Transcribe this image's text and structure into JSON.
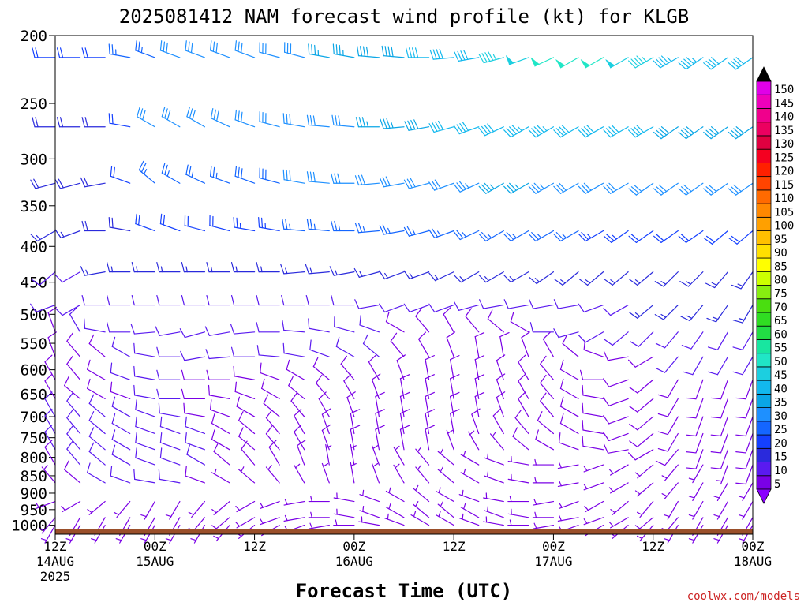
{
  "chart_data": {
    "type": "wind_barbs",
    "title": "2025081412 NAM forecast wind profile (kt) for KLGB",
    "xlabel": "Forecast Time (UTC)",
    "watermark": "coolwx.com/models",
    "y_axis": {
      "quantity": "pressure (hPa)",
      "scale": "log",
      "reversed": true,
      "range": [
        1030,
        200
      ],
      "ticks": [
        200,
        250,
        300,
        350,
        400,
        450,
        500,
        550,
        600,
        650,
        700,
        750,
        800,
        850,
        900,
        950,
        1000
      ]
    },
    "x_axis": {
      "range_hours": [
        0,
        84
      ],
      "ticks": [
        {
          "hour": 0,
          "lines": [
            "12Z",
            "14AUG",
            "2025"
          ]
        },
        {
          "hour": 12,
          "lines": [
            "00Z",
            "15AUG"
          ]
        },
        {
          "hour": 24,
          "lines": [
            "12Z",
            ""
          ]
        },
        {
          "hour": 36,
          "lines": [
            "00Z",
            "16AUG"
          ]
        },
        {
          "hour": 48,
          "lines": [
            "12Z",
            ""
          ]
        },
        {
          "hour": 60,
          "lines": [
            "00Z",
            "17AUG"
          ]
        },
        {
          "hour": 72,
          "lines": [
            "12Z",
            ""
          ]
        },
        {
          "hour": 84,
          "lines": [
            "00Z",
            "18AUG"
          ]
        }
      ]
    },
    "surface_pressure": 1012,
    "surface_color": "#9a4f2a",
    "forecast_hours": [
      0,
      3,
      6,
      9,
      12,
      15,
      18,
      21,
      24,
      27,
      30,
      33,
      36,
      39,
      42,
      45,
      48,
      51,
      54,
      57,
      60,
      63,
      66,
      69,
      72,
      75,
      78,
      81,
      84
    ],
    "levels": [
      215,
      270,
      325,
      380,
      435,
      485,
      530,
      575,
      620,
      660,
      700,
      740,
      780,
      820,
      870,
      925,
      975,
      1000
    ],
    "wind_speed_kt": [
      [
        20,
        22,
        22,
        26,
        26,
        30,
        30,
        30,
        30,
        32,
        32,
        35,
        35,
        38,
        38,
        40,
        42,
        42,
        46,
        48,
        50,
        52,
        50,
        48,
        46,
        44,
        44,
        42,
        40
      ],
      [
        18,
        18,
        18,
        20,
        30,
        30,
        30,
        30,
        30,
        30,
        30,
        30,
        32,
        35,
        35,
        38,
        40,
        42,
        42,
        44,
        44,
        42,
        40,
        40,
        40,
        38,
        38,
        38,
        38
      ],
      [
        18,
        18,
        18,
        20,
        25,
        25,
        25,
        25,
        28,
        28,
        30,
        30,
        32,
        30,
        30,
        32,
        32,
        34,
        35,
        35,
        34,
        32,
        32,
        32,
        32,
        32,
        30,
        30,
        30
      ],
      [
        15,
        15,
        18,
        18,
        22,
        22,
        22,
        22,
        24,
        24,
        25,
        25,
        25,
        25,
        25,
        25,
        25,
        26,
        26,
        26,
        25,
        25,
        24,
        24,
        22,
        22,
        20,
        20,
        20
      ],
      [
        12,
        12,
        15,
        15,
        15,
        15,
        15,
        15,
        15,
        15,
        15,
        15,
        15,
        15,
        15,
        15,
        15,
        15,
        15,
        15,
        15,
        15,
        15,
        15,
        15,
        15,
        15,
        15,
        15
      ],
      [
        10,
        10,
        12,
        12,
        12,
        12,
        12,
        12,
        12,
        12,
        12,
        12,
        10,
        10,
        10,
        10,
        10,
        10,
        10,
        10,
        10,
        12,
        12,
        12,
        15,
        15,
        15,
        15,
        15
      ],
      [
        8,
        10,
        10,
        10,
        10,
        10,
        10,
        10,
        10,
        10,
        10,
        10,
        10,
        10,
        8,
        8,
        8,
        8,
        8,
        8,
        10,
        10,
        10,
        12,
        12,
        12,
        12,
        12,
        12
      ],
      [
        8,
        8,
        8,
        10,
        10,
        10,
        10,
        10,
        10,
        10,
        10,
        10,
        10,
        10,
        8,
        8,
        8,
        8,
        8,
        8,
        8,
        8,
        8,
        8,
        8,
        10,
        10,
        10,
        10
      ],
      [
        8,
        8,
        8,
        10,
        10,
        10,
        8,
        8,
        8,
        8,
        8,
        8,
        8,
        8,
        8,
        8,
        8,
        8,
        8,
        8,
        8,
        8,
        8,
        8,
        8,
        8,
        8,
        8,
        8
      ],
      [
        8,
        8,
        8,
        8,
        10,
        10,
        8,
        8,
        8,
        8,
        8,
        8,
        8,
        8,
        8,
        8,
        8,
        8,
        8,
        8,
        8,
        8,
        8,
        8,
        8,
        8,
        8,
        8,
        8
      ],
      [
        10,
        10,
        10,
        10,
        10,
        10,
        8,
        8,
        8,
        8,
        8,
        8,
        8,
        8,
        8,
        8,
        8,
        8,
        8,
        8,
        8,
        8,
        8,
        8,
        8,
        8,
        8,
        8,
        8
      ],
      [
        12,
        12,
        12,
        12,
        12,
        12,
        10,
        8,
        8,
        8,
        8,
        8,
        8,
        8,
        8,
        8,
        8,
        8,
        8,
        8,
        8,
        8,
        8,
        8,
        8,
        8,
        8,
        8,
        8
      ],
      [
        10,
        12,
        12,
        12,
        12,
        12,
        10,
        8,
        8,
        8,
        8,
        8,
        8,
        8,
        8,
        8,
        5,
        5,
        5,
        8,
        8,
        8,
        8,
        8,
        8,
        8,
        8,
        8,
        8
      ],
      [
        8,
        10,
        12,
        12,
        12,
        12,
        10,
        8,
        8,
        8,
        8,
        5,
        5,
        5,
        5,
        5,
        5,
        5,
        5,
        5,
        5,
        5,
        5,
        5,
        5,
        5,
        5,
        5,
        8
      ],
      [
        5,
        8,
        10,
        10,
        10,
        10,
        8,
        5,
        5,
        5,
        5,
        5,
        5,
        5,
        5,
        5,
        5,
        5,
        5,
        5,
        5,
        5,
        5,
        5,
        5,
        5,
        5,
        5,
        5
      ],
      [
        5,
        5,
        5,
        5,
        5,
        5,
        5,
        5,
        5,
        5,
        5,
        5,
        5,
        5,
        5,
        5,
        5,
        5,
        5,
        5,
        5,
        5,
        5,
        5,
        5,
        5,
        5,
        5,
        5
      ],
      [
        5,
        5,
        5,
        5,
        5,
        5,
        5,
        5,
        5,
        5,
        5,
        5,
        5,
        5,
        5,
        5,
        5,
        5,
        5,
        5,
        5,
        5,
        5,
        5,
        5,
        5,
        5,
        5,
        5
      ],
      [
        5,
        5,
        5,
        5,
        5,
        5,
        5,
        5,
        5,
        5,
        5,
        5,
        5,
        5,
        5,
        5,
        5,
        5,
        5,
        5,
        5,
        5,
        5,
        5,
        5,
        5,
        5,
        5,
        5
      ]
    ],
    "wind_direction_deg": [
      [
        270,
        270,
        270,
        280,
        290,
        290,
        290,
        290,
        290,
        285,
        285,
        280,
        280,
        275,
        275,
        270,
        265,
        260,
        255,
        250,
        245,
        240,
        240,
        240,
        240,
        240,
        235,
        235,
        235
      ],
      [
        270,
        270,
        270,
        280,
        300,
        300,
        300,
        295,
        290,
        285,
        280,
        275,
        275,
        270,
        265,
        260,
        255,
        250,
        245,
        240,
        240,
        240,
        240,
        240,
        240,
        235,
        235,
        235,
        235
      ],
      [
        255,
        255,
        260,
        290,
        310,
        300,
        295,
        290,
        290,
        285,
        280,
        275,
        270,
        265,
        260,
        255,
        250,
        245,
        240,
        240,
        240,
        240,
        240,
        240,
        235,
        235,
        235,
        235,
        235
      ],
      [
        240,
        250,
        270,
        280,
        290,
        290,
        285,
        285,
        280,
        280,
        275,
        275,
        270,
        265,
        260,
        255,
        250,
        245,
        240,
        240,
        240,
        240,
        240,
        235,
        235,
        235,
        235,
        230,
        230
      ],
      [
        230,
        240,
        260,
        270,
        270,
        270,
        270,
        270,
        270,
        270,
        265,
        265,
        260,
        255,
        250,
        250,
        245,
        240,
        240,
        240,
        235,
        230,
        230,
        230,
        230,
        225,
        225,
        220,
        215
      ],
      [
        250,
        240,
        270,
        270,
        270,
        270,
        270,
        270,
        270,
        270,
        270,
        270,
        270,
        260,
        250,
        250,
        250,
        255,
        260,
        260,
        260,
        260,
        250,
        240,
        230,
        225,
        220,
        215,
        210
      ],
      [
        340,
        330,
        280,
        270,
        265,
        260,
        255,
        260,
        265,
        270,
        275,
        280,
        285,
        290,
        300,
        320,
        330,
        320,
        310,
        300,
        270,
        255,
        240,
        230,
        225,
        220,
        215,
        210,
        210
      ],
      [
        340,
        320,
        310,
        300,
        280,
        270,
        260,
        265,
        270,
        275,
        280,
        290,
        300,
        310,
        320,
        330,
        340,
        350,
        350,
        340,
        330,
        310,
        290,
        260,
        240,
        220,
        210,
        210,
        210
      ],
      [
        330,
        320,
        300,
        290,
        280,
        270,
        270,
        270,
        280,
        290,
        300,
        310,
        320,
        330,
        340,
        350,
        350,
        350,
        340,
        330,
        320,
        300,
        270,
        250,
        230,
        210,
        200,
        200,
        200
      ],
      [
        330,
        310,
        300,
        290,
        280,
        270,
        270,
        280,
        290,
        300,
        310,
        320,
        330,
        340,
        350,
        350,
        350,
        350,
        340,
        330,
        320,
        300,
        280,
        250,
        230,
        210,
        200,
        200,
        200
      ],
      [
        330,
        320,
        310,
        300,
        290,
        280,
        280,
        290,
        300,
        310,
        320,
        330,
        340,
        350,
        350,
        350,
        350,
        350,
        340,
        330,
        320,
        300,
        280,
        250,
        230,
        210,
        200,
        200,
        200
      ],
      [
        330,
        320,
        310,
        300,
        290,
        290,
        290,
        300,
        310,
        320,
        330,
        340,
        350,
        350,
        350,
        350,
        350,
        340,
        330,
        320,
        310,
        300,
        280,
        250,
        230,
        210,
        200,
        200,
        200
      ],
      [
        330,
        320,
        310,
        300,
        290,
        290,
        290,
        300,
        310,
        320,
        330,
        340,
        350,
        350,
        350,
        350,
        340,
        330,
        320,
        310,
        300,
        290,
        280,
        260,
        240,
        220,
        200,
        200,
        200
      ],
      [
        330,
        320,
        310,
        300,
        290,
        290,
        300,
        310,
        320,
        330,
        340,
        350,
        350,
        340,
        330,
        320,
        310,
        300,
        290,
        280,
        270,
        260,
        250,
        240,
        230,
        220,
        210,
        200,
        200
      ],
      [
        320,
        310,
        300,
        290,
        280,
        280,
        290,
        300,
        310,
        320,
        330,
        340,
        350,
        340,
        330,
        320,
        310,
        300,
        290,
        280,
        270,
        260,
        250,
        240,
        230,
        220,
        210,
        210,
        210
      ],
      [
        250,
        240,
        230,
        220,
        210,
        210,
        220,
        230,
        240,
        250,
        260,
        270,
        280,
        290,
        300,
        310,
        300,
        290,
        280,
        270,
        260,
        250,
        240,
        230,
        220,
        210,
        210,
        210,
        210
      ],
      [
        220,
        210,
        210,
        210,
        210,
        210,
        220,
        230,
        240,
        250,
        260,
        270,
        280,
        290,
        300,
        310,
        310,
        300,
        290,
        280,
        270,
        260,
        250,
        240,
        230,
        220,
        210,
        210,
        210
      ],
      [
        210,
        210,
        210,
        210,
        210,
        210,
        210,
        220,
        230,
        240,
        250,
        260,
        270,
        280,
        290,
        300,
        300,
        290,
        280,
        270,
        260,
        250,
        240,
        230,
        220,
        210,
        210,
        210,
        210
      ]
    ],
    "colorbar": {
      "values": [
        5,
        10,
        15,
        20,
        25,
        30,
        35,
        40,
        45,
        50,
        55,
        60,
        65,
        70,
        75,
        80,
        85,
        90,
        95,
        100,
        105,
        110,
        115,
        120,
        125,
        130,
        135,
        140,
        145,
        150
      ],
      "colors": [
        "#7a00e6",
        "#5a1af0",
        "#2a2adc",
        "#1440ff",
        "#1466ff",
        "#1e90ff",
        "#0aa6e6",
        "#12b8ee",
        "#1ccfe0",
        "#20e6c6",
        "#18e6a0",
        "#22dd44",
        "#30dd22",
        "#4ade10",
        "#88ee10",
        "#ccff00",
        "#ffff00",
        "#ffe000",
        "#ffc000",
        "#ffa000",
        "#ff8800",
        "#ff6a00",
        "#ff4400",
        "#ff2000",
        "#f40020",
        "#e00040",
        "#ec0060",
        "#f0008c",
        "#ee00bb",
        "#e000e8"
      ],
      "min_arrow_color": "#8a00ff",
      "max_arrow_color": "#000000"
    }
  }
}
